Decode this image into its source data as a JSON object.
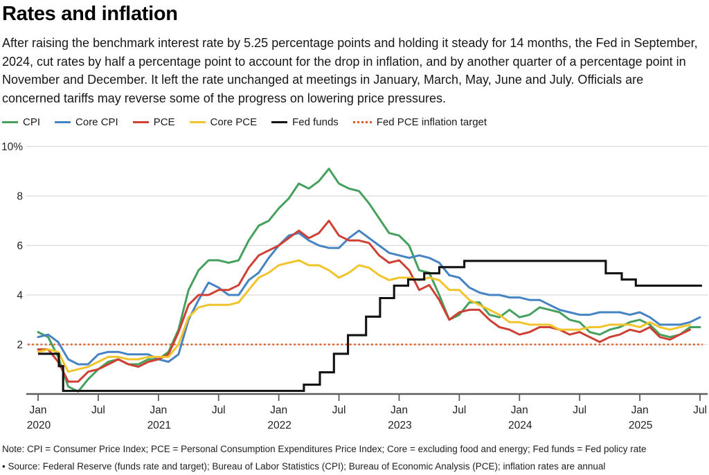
{
  "header": {
    "title": "Rates and inflation",
    "intro": "After raising the benchmark interest rate by 5.25 percentage points and holding it steady for 14 months, the Fed in September, 2024, cut rates by half a percentage point to account for the drop in inflation, and by another quarter of a percentage point in November and December. It left the rate unchanged at meetings in January, March, May, June and July. Officials are concerned tariffs may reverse some of the progress on lowering price pressures."
  },
  "legend": {
    "items": [
      {
        "label": "CPI",
        "color": "#44a05c",
        "style": "solid"
      },
      {
        "label": "Core CPI",
        "color": "#4583c2",
        "style": "solid"
      },
      {
        "label": "PCE",
        "color": "#cf4034",
        "style": "solid"
      },
      {
        "label": "Core PCE",
        "color": "#f1c42c",
        "style": "solid"
      },
      {
        "label": "Fed funds",
        "color": "#121212",
        "style": "solid"
      },
      {
        "label": "Fed PCE inflation target",
        "color": "#e2581c",
        "style": "dotted"
      }
    ]
  },
  "chart_data": {
    "type": "line",
    "title": "Rates and inflation",
    "x_unit": "month",
    "x_range": [
      "Jan 2020",
      "Jul 2025"
    ],
    "ylim": [
      0,
      10.3
    ],
    "grid": "horizontal",
    "y_ticks": [
      {
        "v": 2,
        "label": "2"
      },
      {
        "v": 4,
        "label": "4"
      },
      {
        "v": 6,
        "label": "6"
      },
      {
        "v": 8,
        "label": "8"
      },
      {
        "v": 10,
        "label": "10%"
      }
    ],
    "x_ticks": [
      {
        "m": 0,
        "label": "Jan",
        "year": "2020"
      },
      {
        "m": 6,
        "label": "Jul"
      },
      {
        "m": 12,
        "label": "Jan",
        "year": "2021"
      },
      {
        "m": 18,
        "label": "Jul"
      },
      {
        "m": 24,
        "label": "Jan",
        "year": "2022"
      },
      {
        "m": 30,
        "label": "Jul"
      },
      {
        "m": 36,
        "label": "Jan",
        "year": "2023"
      },
      {
        "m": 42,
        "label": "Jul"
      },
      {
        "m": 48,
        "label": "Jan",
        "year": "2024"
      },
      {
        "m": 54,
        "label": "Jul"
      },
      {
        "m": 60,
        "label": "Jan",
        "year": "2025"
      },
      {
        "m": 66,
        "label": "Jul"
      }
    ],
    "target_line": {
      "label": "Fed PCE inflation target",
      "value": 2,
      "color": "#e2581c"
    },
    "series": [
      {
        "name": "CPI",
        "color": "#44a05c",
        "kind": "line",
        "start": "2020-01",
        "values": [
          2.5,
          2.3,
          1.5,
          0.3,
          0.1,
          0.6,
          1.0,
          1.3,
          1.4,
          1.2,
          1.2,
          1.4,
          1.4,
          1.7,
          2.6,
          4.2,
          5.0,
          5.4,
          5.4,
          5.3,
          5.4,
          6.2,
          6.8,
          7.0,
          7.5,
          7.9,
          8.5,
          8.3,
          8.6,
          9.1,
          8.5,
          8.3,
          8.2,
          7.7,
          7.1,
          6.5,
          6.4,
          6.0,
          5.0,
          4.9,
          4.0,
          3.0,
          3.2,
          3.7,
          3.7,
          3.2,
          3.1,
          3.4,
          3.1,
          3.2,
          3.5,
          3.4,
          3.3,
          3.0,
          2.9,
          2.5,
          2.4,
          2.6,
          2.7,
          2.9,
          3.0,
          2.8,
          2.4,
          2.3,
          2.4,
          2.7,
          2.7
        ]
      },
      {
        "name": "Core CPI",
        "color": "#4583c2",
        "kind": "line",
        "start": "2020-01",
        "values": [
          2.3,
          2.4,
          2.1,
          1.4,
          1.2,
          1.2,
          1.6,
          1.7,
          1.7,
          1.6,
          1.6,
          1.6,
          1.4,
          1.3,
          1.6,
          3.0,
          3.8,
          4.5,
          4.3,
          4.0,
          4.0,
          4.6,
          4.9,
          5.5,
          6.0,
          6.4,
          6.5,
          6.2,
          6.0,
          5.9,
          5.9,
          6.3,
          6.6,
          6.3,
          6.0,
          5.7,
          5.6,
          5.5,
          5.6,
          5.5,
          5.3,
          4.8,
          4.7,
          4.3,
          4.1,
          4.0,
          4.0,
          3.9,
          3.9,
          3.8,
          3.8,
          3.6,
          3.4,
          3.3,
          3.2,
          3.2,
          3.3,
          3.3,
          3.3,
          3.2,
          3.3,
          3.1,
          2.8,
          2.8,
          2.8,
          2.9,
          3.1
        ]
      },
      {
        "name": "PCE",
        "color": "#cf4034",
        "kind": "line",
        "start": "2020-01",
        "values": [
          1.8,
          1.8,
          1.3,
          0.5,
          0.5,
          0.9,
          1.0,
          1.2,
          1.4,
          1.2,
          1.1,
          1.3,
          1.4,
          1.6,
          2.5,
          3.6,
          4.0,
          4.0,
          4.2,
          4.2,
          4.4,
          5.1,
          5.6,
          5.8,
          6.0,
          6.3,
          6.6,
          6.3,
          6.5,
          7.0,
          6.4,
          6.2,
          6.2,
          6.1,
          5.6,
          5.3,
          5.4,
          5.0,
          4.2,
          4.4,
          3.8,
          3.0,
          3.3,
          3.4,
          3.4,
          3.0,
          2.7,
          2.6,
          2.4,
          2.5,
          2.7,
          2.7,
          2.6,
          2.4,
          2.5,
          2.3,
          2.1,
          2.3,
          2.4,
          2.6,
          2.5,
          2.7,
          2.3,
          2.2,
          2.4,
          2.6
        ]
      },
      {
        "name": "Core PCE",
        "color": "#f1c42c",
        "kind": "line",
        "start": "2020-01",
        "values": [
          1.7,
          1.8,
          1.7,
          0.9,
          1.0,
          1.1,
          1.3,
          1.5,
          1.5,
          1.4,
          1.4,
          1.5,
          1.5,
          1.5,
          2.0,
          3.1,
          3.5,
          3.6,
          3.6,
          3.6,
          3.7,
          4.2,
          4.7,
          4.9,
          5.2,
          5.3,
          5.4,
          5.2,
          5.2,
          5.0,
          4.7,
          4.9,
          5.2,
          5.1,
          4.8,
          4.6,
          4.7,
          4.7,
          4.6,
          4.7,
          4.6,
          4.2,
          4.2,
          3.8,
          3.6,
          3.4,
          3.2,
          2.9,
          2.9,
          2.8,
          2.8,
          2.8,
          2.6,
          2.6,
          2.6,
          2.7,
          2.7,
          2.8,
          2.8,
          2.8,
          2.7,
          2.9,
          2.7,
          2.6,
          2.7,
          2.8
        ]
      },
      {
        "name": "Fed funds",
        "color": "#121212",
        "kind": "step",
        "steps": [
          {
            "from": 0.0,
            "to": 2.07,
            "rate": 1.625
          },
          {
            "from": 2.07,
            "to": 2.5,
            "rate": 1.125
          },
          {
            "from": 2.5,
            "to": 26.5,
            "rate": 0.125
          },
          {
            "from": 26.5,
            "to": 28.1,
            "rate": 0.375
          },
          {
            "from": 28.1,
            "to": 29.5,
            "rate": 0.875
          },
          {
            "from": 29.5,
            "to": 30.9,
            "rate": 1.625
          },
          {
            "from": 30.9,
            "to": 32.7,
            "rate": 2.375
          },
          {
            "from": 32.7,
            "to": 34.1,
            "rate": 3.125
          },
          {
            "from": 34.1,
            "to": 35.5,
            "rate": 3.875
          },
          {
            "from": 35.5,
            "to": 36.9,
            "rate": 4.375
          },
          {
            "from": 36.9,
            "to": 38.5,
            "rate": 4.625
          },
          {
            "from": 38.5,
            "to": 40.0,
            "rate": 4.875
          },
          {
            "from": 40.0,
            "to": 42.5,
            "rate": 5.125
          },
          {
            "from": 42.5,
            "to": 56.6,
            "rate": 5.375
          },
          {
            "from": 56.6,
            "to": 58.2,
            "rate": 4.875
          },
          {
            "from": 58.2,
            "to": 59.6,
            "rate": 4.625
          },
          {
            "from": 59.6,
            "to": 66.2,
            "rate": 4.375
          }
        ]
      }
    ]
  },
  "notes": {
    "line1": "Note: CPI = Consumer Price Index; PCE = Personal Consumption Expenditures Price Index; Core = excluding food and energy; Fed funds = Fed policy rate",
    "line2": "• Source: Federal Reserve (funds rate and target); Bureau of Labor Statistics (CPI); Bureau of Economic Analysis (PCE); inflation rates are annual"
  }
}
